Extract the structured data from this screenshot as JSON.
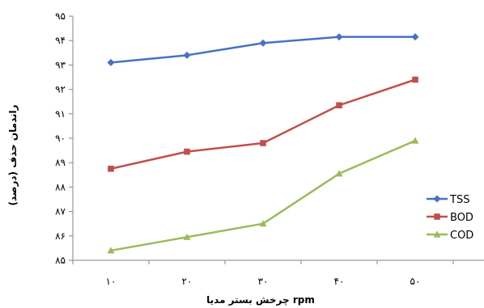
{
  "chart_data": {
    "type": "line",
    "title": "",
    "xlabel": "چرخش بستر مدیا rpm",
    "ylabel": "راندمان حذف (درصد)",
    "categories": [
      "۱۰",
      "۲۰",
      "۳۰",
      "۴۰",
      "۵۰"
    ],
    "y_tick_labels": [
      "۸۵",
      "۸۶",
      "۸۷",
      "۸۸",
      "۸۹",
      "۹۰",
      "۹۱",
      "۹۲",
      "۹۳",
      "۹۴",
      "۹۵"
    ],
    "ylim": [
      85,
      95
    ],
    "grid": false,
    "legend_position": "right",
    "series": [
      {
        "name": "TSS",
        "color": "#4572C4",
        "marker": "diamond",
        "values": [
          93.1,
          93.4,
          93.9,
          94.15,
          94.15
        ]
      },
      {
        "name": "BOD",
        "color": "#C0504D",
        "marker": "square",
        "values": [
          88.75,
          89.45,
          89.8,
          91.35,
          92.4
        ]
      },
      {
        "name": "COD",
        "color": "#9BBB59",
        "marker": "triangle",
        "values": [
          85.4,
          85.95,
          86.5,
          88.55,
          89.9
        ]
      }
    ]
  }
}
